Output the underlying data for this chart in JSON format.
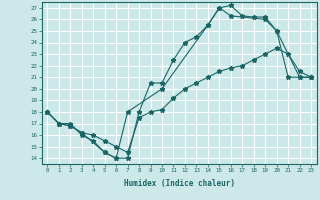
{
  "xlabel": "Humidex (Indice chaleur)",
  "bg_color": "#cce8e8",
  "line_color": "#1a6666",
  "grid_color": "#ffffff",
  "xlim": [
    -0.5,
    23.5
  ],
  "ylim": [
    13.5,
    27.5
  ],
  "xticks": [
    0,
    1,
    2,
    3,
    4,
    5,
    6,
    7,
    8,
    9,
    10,
    11,
    12,
    13,
    14,
    15,
    16,
    17,
    18,
    19,
    20,
    21,
    22,
    23
  ],
  "yticks": [
    14,
    15,
    16,
    17,
    18,
    19,
    20,
    21,
    22,
    23,
    24,
    25,
    26,
    27
  ],
  "line1_x": [
    0,
    1,
    2,
    3,
    4,
    5,
    6,
    7,
    8,
    9,
    10,
    11,
    12,
    13,
    14,
    15,
    16,
    17,
    18,
    19,
    20,
    21,
    22,
    23
  ],
  "line1_y": [
    18,
    17,
    17,
    16,
    15.5,
    14.5,
    14,
    14,
    18,
    20.5,
    20.5,
    22.5,
    24,
    24.5,
    25.5,
    27,
    27.2,
    26.3,
    26.2,
    26.2,
    25,
    21,
    21,
    21
  ],
  "line2_x": [
    0,
    1,
    2,
    3,
    4,
    5,
    6,
    7,
    8,
    9,
    10,
    11,
    12,
    13,
    14,
    15,
    16,
    17,
    18,
    19,
    20,
    21,
    22,
    23
  ],
  "line2_y": [
    18,
    17,
    16.8,
    16.2,
    16,
    15.5,
    15,
    14.5,
    17.5,
    18,
    18.2,
    19.2,
    20,
    20.5,
    21,
    21.5,
    21.8,
    22,
    22.5,
    23,
    23.5,
    23,
    21.5,
    21
  ],
  "line3_x": [
    0,
    1,
    2,
    3,
    5,
    6,
    7,
    10,
    14,
    15,
    16,
    19,
    20,
    22,
    23
  ],
  "line3_y": [
    18,
    17,
    16.8,
    16.2,
    14.5,
    14,
    18,
    20,
    25.5,
    27,
    26.3,
    26,
    25,
    21,
    21
  ]
}
